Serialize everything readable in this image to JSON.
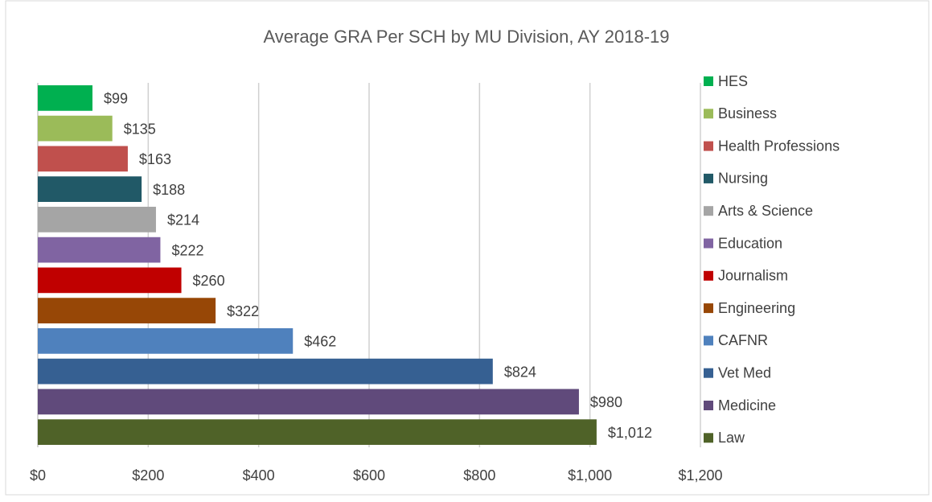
{
  "chart_data": {
    "type": "bar",
    "orientation": "horizontal",
    "title": "Average GRA Per SCH by MU Division, AY 2018-19",
    "series": [
      {
        "name": "HES",
        "color": "#00b050",
        "values": [
          99
        ],
        "value_labels": [
          "$99"
        ]
      },
      {
        "name": "Business",
        "color": "#9bbb59",
        "values": [
          135
        ],
        "value_labels": [
          "$135"
        ]
      },
      {
        "name": "Health Professions",
        "color": "#c0504d",
        "values": [
          163
        ],
        "value_labels": [
          "$163"
        ]
      },
      {
        "name": "Nursing",
        "color": "#215967",
        "values": [
          188
        ],
        "value_labels": [
          "$188"
        ]
      },
      {
        "name": "Arts & Science",
        "color": "#a5a5a5",
        "values": [
          214
        ],
        "value_labels": [
          "$214"
        ]
      },
      {
        "name": "Education",
        "color": "#8064a2",
        "values": [
          222
        ],
        "value_labels": [
          "$222"
        ]
      },
      {
        "name": "Journalism",
        "color": "#c00000",
        "values": [
          260
        ],
        "value_labels": [
          "$260"
        ]
      },
      {
        "name": "Engineering",
        "color": "#974706",
        "values": [
          322
        ],
        "value_labels": [
          "$322"
        ]
      },
      {
        "name": "CAFNR",
        "color": "#4f81bd",
        "values": [
          462
        ],
        "value_labels": [
          "$462"
        ]
      },
      {
        "name": "Vet Med",
        "color": "#366092",
        "values": [
          824
        ],
        "value_labels": [
          "$824"
        ]
      },
      {
        "name": "Medicine",
        "color": "#604a7b",
        "values": [
          980
        ],
        "value_labels": [
          "$980"
        ]
      },
      {
        "name": "Law",
        "color": "#4f6228",
        "values": [
          1012
        ],
        "value_labels": [
          "$1,012"
        ]
      }
    ],
    "xlim": [
      0,
      1200
    ],
    "xticks": [
      {
        "value": 0,
        "label": "$0"
      },
      {
        "value": 200,
        "label": "$200"
      },
      {
        "value": 400,
        "label": "$400"
      },
      {
        "value": 600,
        "label": "$600"
      },
      {
        "value": 800,
        "label": "$800"
      },
      {
        "value": 1000,
        "label": "$1,000"
      },
      {
        "value": 1200,
        "label": "$1,200"
      }
    ],
    "grid": true,
    "legend": "right"
  }
}
